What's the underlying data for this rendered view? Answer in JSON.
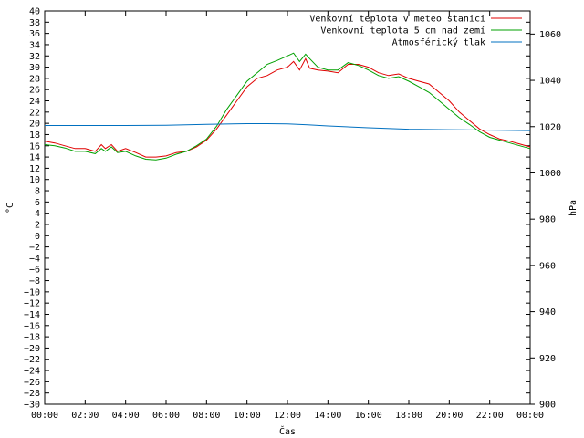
{
  "chart_data": {
    "type": "line",
    "xlabel": "Čas",
    "ylabel": "°C",
    "y2label": "hPa",
    "x_ticks": [
      "00:00",
      "02:00",
      "04:00",
      "06:00",
      "08:00",
      "10:00",
      "12:00",
      "14:00",
      "16:00",
      "18:00",
      "20:00",
      "22:00",
      "00:00"
    ],
    "x_range_hours": [
      0,
      24
    ],
    "ylim": [
      -30,
      40
    ],
    "y_tick_step": 2,
    "y2lim": [
      900,
      1070
    ],
    "y2_ticks": [
      900,
      920,
      940,
      960,
      980,
      1000,
      1020,
      1040,
      1060
    ],
    "grid": false,
    "legend_position": "top-right",
    "series": [
      {
        "name": "Venkovní teplota v meteo stanici",
        "axis": "left",
        "color": "#e00000",
        "x_hours": [
          0,
          0.5,
          1,
          1.5,
          2,
          2.5,
          2.8,
          3,
          3.3,
          3.6,
          4,
          4.5,
          5,
          5.5,
          6,
          6.5,
          7,
          7.5,
          8,
          8.5,
          9,
          9.5,
          10,
          10.5,
          11,
          11.5,
          12,
          12.3,
          12.6,
          12.9,
          13.1,
          13.5,
          14,
          14.5,
          15,
          15.5,
          16,
          16.5,
          17,
          17.5,
          18,
          18.5,
          19,
          19.5,
          20,
          20.5,
          21,
          21.5,
          22,
          22.5,
          23,
          23.5,
          24
        ],
        "values": [
          16.8,
          16.5,
          16,
          15.5,
          15.5,
          15,
          16.2,
          15.5,
          16.2,
          15,
          15.5,
          14.8,
          14,
          14,
          14.2,
          14.8,
          15,
          15.8,
          17,
          19,
          21.5,
          24,
          26.5,
          28,
          28.5,
          29.5,
          30,
          31,
          29.5,
          31.5,
          29.8,
          29.5,
          29.3,
          29,
          30.5,
          30.5,
          30,
          29,
          28.5,
          28.8,
          28,
          27.5,
          27,
          25.5,
          24,
          22,
          20.5,
          19,
          18,
          17.2,
          16.8,
          16.3,
          15.8
        ]
      },
      {
        "name": "Venkovní teplota 5 cm nad zemí",
        "axis": "left",
        "color": "#00a000",
        "x_hours": [
          0,
          0.5,
          1,
          1.5,
          2,
          2.5,
          2.8,
          3,
          3.3,
          3.6,
          4,
          4.5,
          5,
          5.5,
          6,
          6.5,
          7,
          7.5,
          8,
          8.5,
          9,
          9.5,
          10,
          10.5,
          11,
          11.5,
          12,
          12.3,
          12.6,
          12.9,
          13.1,
          13.5,
          14,
          14.5,
          15,
          15.5,
          16,
          16.5,
          17,
          17.5,
          18,
          18.5,
          19,
          19.5,
          20,
          20.5,
          21,
          21.5,
          22,
          22.5,
          23,
          23.5,
          24
        ],
        "values": [
          16.2,
          16,
          15.6,
          15,
          15,
          14.6,
          15.5,
          15,
          15.8,
          14.8,
          15,
          14.2,
          13.6,
          13.5,
          13.8,
          14.5,
          15,
          16,
          17.2,
          19.5,
          22.5,
          25,
          27.5,
          29,
          30.5,
          31.2,
          32,
          32.5,
          31,
          32.3,
          31.5,
          30,
          29.5,
          29.5,
          30.8,
          30.3,
          29.5,
          28.5,
          28,
          28.3,
          27.5,
          26.5,
          25.5,
          24,
          22.5,
          21,
          19.8,
          18.5,
          17.5,
          17,
          16.5,
          16,
          15.5
        ]
      },
      {
        "name": "Atmosférický tlak",
        "axis": "right",
        "color": "#0070c0",
        "x_hours": [
          0,
          2,
          4,
          6,
          8,
          10,
          11,
          12,
          13,
          14,
          16,
          18,
          20,
          22,
          24
        ],
        "values": [
          1020.5,
          1020.5,
          1020.5,
          1020.6,
          1021,
          1021.3,
          1021.3,
          1021.2,
          1020.8,
          1020.3,
          1019.5,
          1018.9,
          1018.7,
          1018.5,
          1018.3
        ]
      }
    ]
  }
}
